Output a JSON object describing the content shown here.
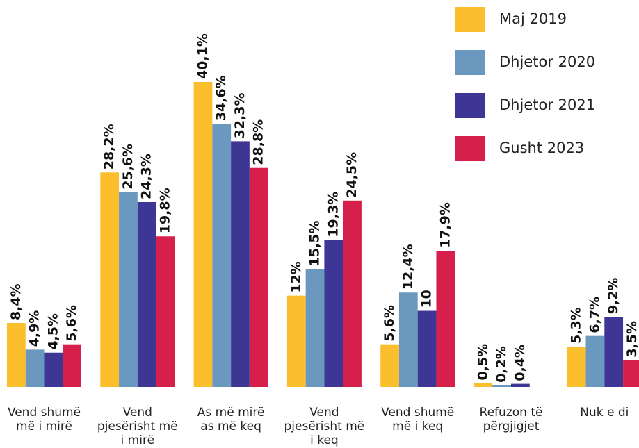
{
  "chart_data": {
    "type": "bar",
    "categories": [
      "Vend shumë më i mirë",
      "Vend pjesërisht më i mirë",
      "As më mirë as më keq",
      "Vend pjesërisht më i keq",
      "Vend shumë më i keq",
      "Refuzon të përgjigjet",
      "Nuk e di"
    ],
    "series": [
      {
        "name": "Maj 2019",
        "color": "#fbbf2e",
        "values": [
          8.4,
          28.2,
          40.1,
          12,
          5.6,
          0.5,
          5.3
        ],
        "value_labels": [
          "8,4%",
          "28,2%",
          "40,1%",
          "12%",
          "5,6%",
          "0,5%",
          "5,3%"
        ]
      },
      {
        "name": "Dhjetor 2020",
        "color": "#6b98bf",
        "values": [
          4.9,
          25.6,
          34.6,
          15.5,
          12.4,
          0.2,
          6.7
        ],
        "value_labels": [
          "4,9%",
          "25,6%",
          "34,6%",
          "15,5%",
          "12,4%",
          "0,2%",
          "6,7%"
        ]
      },
      {
        "name": "Dhjetor 2021",
        "color": "#3e3694",
        "values": [
          4.5,
          24.3,
          32.3,
          19.3,
          10,
          0.4,
          9.2
        ],
        "value_labels": [
          "4,5%",
          "24,3%",
          "32,3%",
          "19,3%",
          "10",
          "0,4%",
          "9,2%"
        ]
      },
      {
        "name": "Gusht 2023",
        "color": "#d6204b",
        "values": [
          5.6,
          19.8,
          28.8,
          24.5,
          17.9,
          null,
          3.5
        ],
        "value_labels": [
          "5,6%",
          "19,8%",
          "28,8%",
          "24,5%",
          "17,9%",
          null,
          "3,5%"
        ]
      }
    ]
  }
}
